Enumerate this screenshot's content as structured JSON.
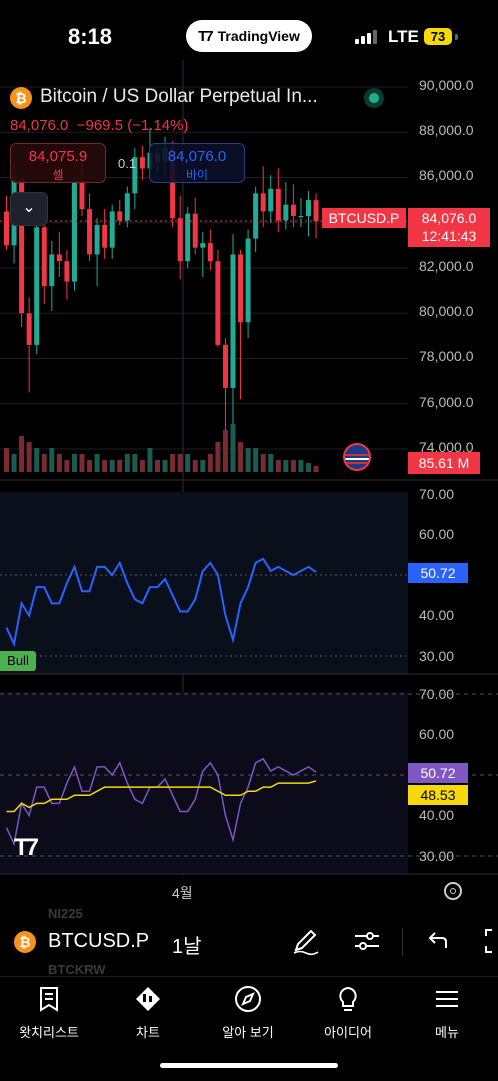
{
  "status": {
    "time": "8:18",
    "app_pill": "TradingView",
    "network": "LTE",
    "battery": "73"
  },
  "header": {
    "title": "Bitcoin / US Dollar Perpetual In...",
    "last_price": "84,076.0",
    "change": "−969.5 (−1.14%)",
    "sell_price": "84,075.9",
    "sell_label": "셀",
    "buy_price": "84,076.0",
    "buy_label": "바이",
    "spread": "0.1"
  },
  "price_axis": {
    "ticks": [
      "90,000.0",
      "88,000.0",
      "86,000.0",
      "84,000.0",
      "82,000.0",
      "80,000.0",
      "78,000.0",
      "76,000.0",
      "74,000.0"
    ],
    "symbol_tag": "BTCUSD.P",
    "current_price": "84,076.0",
    "countdown": "12:41:43",
    "volume": "85.61 M"
  },
  "rsi_panel": {
    "ticks": [
      "70.00",
      "60.00",
      "50.00",
      "40.00",
      "30.00"
    ],
    "value": "50.72",
    "bull_label": "Bull"
  },
  "rsi2_panel": {
    "ticks": [
      "70.00",
      "60.00",
      "50.00",
      "40.00",
      "30.00"
    ],
    "rsi_value": "50.72",
    "ma_value": "48.53"
  },
  "time_axis": {
    "month": "4월"
  },
  "toolbar": {
    "symbol": "BTCUSD.P",
    "interval": "1날",
    "ghost_above": "NI225",
    "ghost_below": "BTCKRW"
  },
  "tabs": [
    {
      "label": "왓치리스트",
      "icon": "watchlist-icon"
    },
    {
      "label": "차트",
      "icon": "chart-icon"
    },
    {
      "label": "알아 보기",
      "icon": "compass-icon"
    },
    {
      "label": "아이디어",
      "icon": "lightbulb-icon"
    },
    {
      "label": "메뉴",
      "icon": "menu-icon"
    }
  ],
  "colors": {
    "up": "#22ab94",
    "down": "#f23645",
    "rsi": "#2962ff",
    "rsi2": "#7e57c2",
    "ma": "#f5d90a"
  },
  "chart_data": {
    "type": "candlestick",
    "interval": "1 day",
    "ylim": [
      73500,
      90500
    ],
    "candles": [
      [
        84500,
        85200,
        82800,
        83000
      ],
      [
        83000,
        86600,
        82200,
        85900
      ],
      [
        85900,
        86000,
        79400,
        80000
      ],
      [
        80000,
        80700,
        76500,
        78600
      ],
      [
        78600,
        84100,
        78200,
        83800
      ],
      [
        83800,
        84100,
        80400,
        81200
      ],
      [
        81200,
        83200,
        80100,
        82600
      ],
      [
        82600,
        83600,
        81600,
        82300
      ],
      [
        82300,
        82800,
        80600,
        81400
      ],
      [
        81400,
        86000,
        81000,
        85800
      ],
      [
        85800,
        86900,
        84300,
        84600
      ],
      [
        84600,
        85300,
        82300,
        82600
      ],
      [
        82600,
        84200,
        81200,
        83900
      ],
      [
        83900,
        84600,
        82400,
        82900
      ],
      [
        82900,
        84800,
        82400,
        84500
      ],
      [
        84500,
        85000,
        83900,
        84100
      ],
      [
        84100,
        85600,
        83800,
        85300
      ],
      [
        85300,
        87300,
        84600,
        86900
      ],
      [
        86900,
        87400,
        85900,
        86400
      ],
      [
        86400,
        88200,
        86000,
        87100
      ],
      [
        87100,
        87500,
        86200,
        86700
      ],
      [
        86700,
        87800,
        86100,
        87300
      ],
      [
        87300,
        87600,
        83800,
        84200
      ],
      [
        84200,
        85200,
        81500,
        82300
      ],
      [
        82300,
        84700,
        82000,
        84400
      ],
      [
        84400,
        85100,
        82600,
        82900
      ],
      [
        82900,
        83600,
        81600,
        83100
      ],
      [
        83100,
        83700,
        81900,
        82300
      ],
      [
        82300,
        82800,
        78500,
        78600
      ],
      [
        78600,
        78900,
        74600,
        76700
      ],
      [
        76700,
        83500,
        74600,
        82600
      ],
      [
        82600,
        82800,
        76200,
        79600
      ],
      [
        79600,
        83700,
        78900,
        83300
      ],
      [
        83300,
        85600,
        82700,
        85300
      ],
      [
        85300,
        86500,
        83800,
        84500
      ],
      [
        84500,
        86100,
        84000,
        85500
      ],
      [
        85500,
        86400,
        83600,
        84100
      ],
      [
        84100,
        85800,
        83700,
        84800
      ],
      [
        84800,
        85700,
        83800,
        84300
      ],
      [
        84300,
        85100,
        83800,
        84300
      ],
      [
        84300,
        85400,
        83400,
        85000
      ],
      [
        85000,
        85300,
        83300,
        84076
      ]
    ],
    "volume": [
      4,
      3,
      6,
      5,
      4,
      3,
      4,
      3,
      2,
      3,
      3,
      2,
      3,
      2,
      2,
      2,
      3,
      3,
      2,
      4,
      2,
      2,
      3,
      3,
      3,
      2,
      2,
      3,
      5,
      7,
      8,
      5,
      4,
      4,
      3,
      3,
      2,
      2,
      2,
      2,
      1.5,
      1
    ],
    "rsi": [
      37,
      33,
      43,
      40,
      47,
      47,
      43,
      43,
      48,
      52,
      46,
      46,
      52,
      52,
      50,
      53,
      48,
      44,
      43,
      47,
      47,
      49,
      45,
      41,
      41,
      44,
      51,
      53,
      50,
      40,
      34,
      43,
      47,
      53,
      54,
      51,
      52,
      51,
      50,
      51,
      52,
      50.72
    ],
    "rsi_ma": [
      41,
      41,
      43,
      42,
      43,
      43,
      44,
      44,
      44,
      45,
      45,
      45,
      46,
      47,
      47,
      47,
      47,
      47,
      47,
      47,
      47,
      47,
      47,
      47,
      47,
      47,
      47,
      47,
      46,
      45,
      45,
      45,
      46,
      46,
      47,
      47,
      48,
      48,
      48,
      48,
      48,
      48.53
    ]
  }
}
